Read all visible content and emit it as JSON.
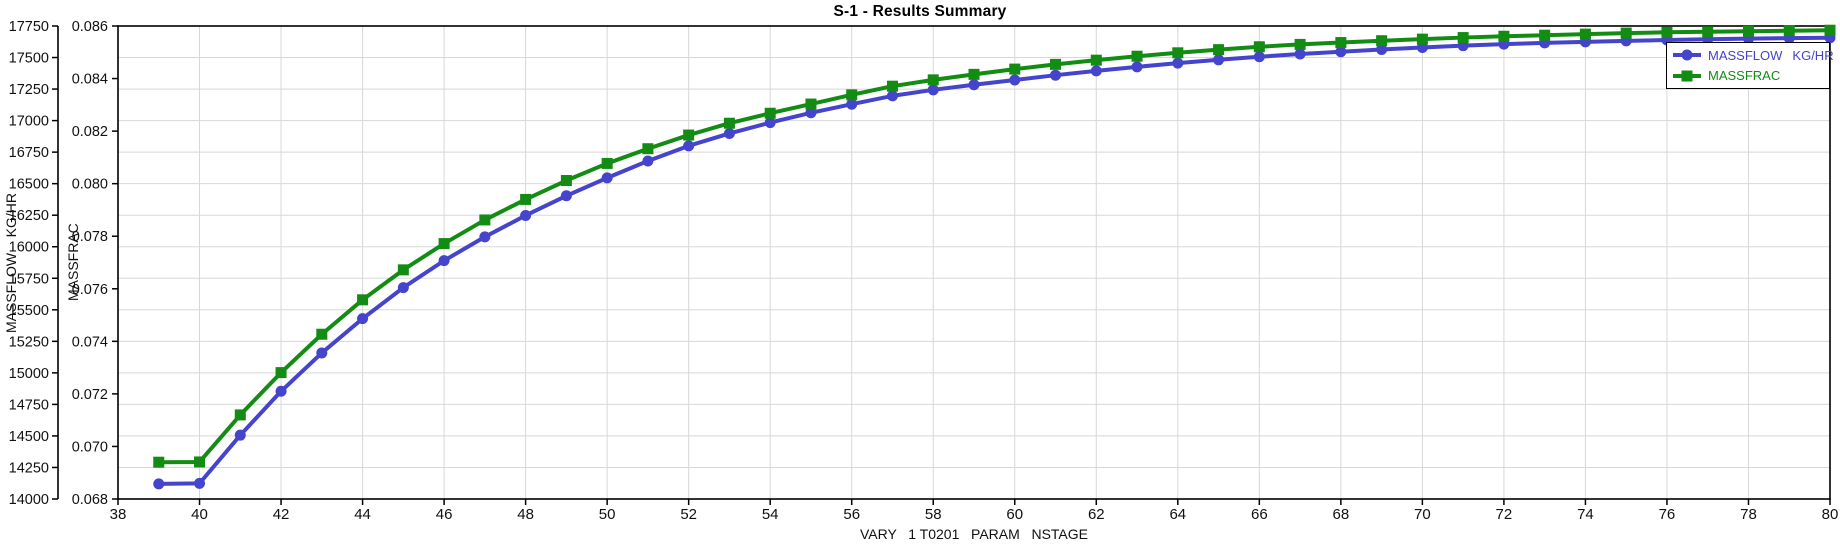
{
  "title": "S-1 - Results Summary",
  "colors": {
    "massflow": "#4444CC",
    "massfrac": "#128C12",
    "grid": "#D8D8D8",
    "axis": "#000000",
    "background": "#FFFFFF"
  },
  "legend": {
    "items": [
      {
        "label": "MASSFLOW",
        "unit": "KG/HR",
        "color": "#4444CC",
        "marker": "circle"
      },
      {
        "label": "MASSFRAC",
        "unit": "",
        "color": "#128C12",
        "marker": "square"
      }
    ]
  },
  "axes": {
    "x": {
      "title": "VARY   1 T0201   PARAM   NSTAGE",
      "min": 38,
      "max": 80,
      "tick_step": 2,
      "tick_labels": [
        "38",
        "40",
        "42",
        "44",
        "46",
        "48",
        "50",
        "52",
        "54",
        "56",
        "58",
        "60",
        "62",
        "64",
        "66",
        "68",
        "70",
        "72",
        "74",
        "76",
        "78",
        "80"
      ]
    },
    "y_massflow": {
      "title": "MASSFLOW    KG/HR",
      "min": 14000,
      "max": 17750,
      "tick_step": 250,
      "tick_labels": [
        "14000",
        "14250",
        "14500",
        "14750",
        "15000",
        "15250",
        "15500",
        "15750",
        "16000",
        "16250",
        "16500",
        "16750",
        "17000",
        "17250",
        "17500",
        "17750"
      ]
    },
    "y_massfrac": {
      "title": "MASSFRAC",
      "min": 0.068,
      "max": 0.086,
      "tick_step": 0.002,
      "tick_labels": [
        "0.068",
        "0.070",
        "0.072",
        "0.074",
        "0.076",
        "0.078",
        "0.080",
        "0.082",
        "0.084",
        "0.086"
      ]
    }
  },
  "chart_data": {
    "type": "line",
    "title": "S-1 - Results Summary",
    "xlabel": "VARY   1 T0201   PARAM   NSTAGE",
    "grid": true,
    "legend_position": "top-right",
    "x_range": [
      38,
      80
    ],
    "flow_range": [
      14000,
      17750
    ],
    "frac_range": [
      0.068,
      0.086
    ],
    "x": [
      39,
      40,
      41,
      42,
      43,
      44,
      45,
      46,
      47,
      48,
      49,
      50,
      51,
      52,
      53,
      54,
      55,
      56,
      57,
      58,
      59,
      60,
      61,
      62,
      63,
      64,
      65,
      66,
      67,
      68,
      69,
      70,
      71,
      72,
      73,
      74,
      75,
      76,
      77,
      78,
      79,
      80
    ],
    "series": [
      {
        "name": "MASSFLOW",
        "unit": "KG/HR",
        "axis": "y_massflow",
        "marker": "circle",
        "color": "#4444CC",
        "values": [
          14120,
          14124,
          14506,
          14854,
          15158,
          15430,
          15676,
          15890,
          16078,
          16248,
          16404,
          16546,
          16680,
          16800,
          16898,
          16984,
          17062,
          17130,
          17196,
          17244,
          17284,
          17322,
          17360,
          17394,
          17426,
          17456,
          17482,
          17506,
          17528,
          17546,
          17564,
          17580,
          17594,
          17606,
          17616,
          17624,
          17632,
          17639,
          17645,
          17650,
          17654,
          17657
        ]
      },
      {
        "name": "MASSFRAC",
        "unit": "",
        "axis": "y_massfrac",
        "marker": "square",
        "color": "#128C12",
        "values": [
          0.0694,
          0.06941,
          0.0712,
          0.07281,
          0.07427,
          0.07558,
          0.07672,
          0.07772,
          0.07862,
          0.0794,
          0.08012,
          0.08077,
          0.08133,
          0.08185,
          0.0823,
          0.08268,
          0.08303,
          0.08338,
          0.08371,
          0.08395,
          0.08416,
          0.08436,
          0.08454,
          0.0847,
          0.08485,
          0.08498,
          0.0851,
          0.08521,
          0.0853,
          0.08537,
          0.08544,
          0.0855,
          0.08556,
          0.08561,
          0.08565,
          0.08569,
          0.08573,
          0.08576,
          0.08578,
          0.0858,
          0.08582,
          0.08584
        ]
      }
    ]
  }
}
